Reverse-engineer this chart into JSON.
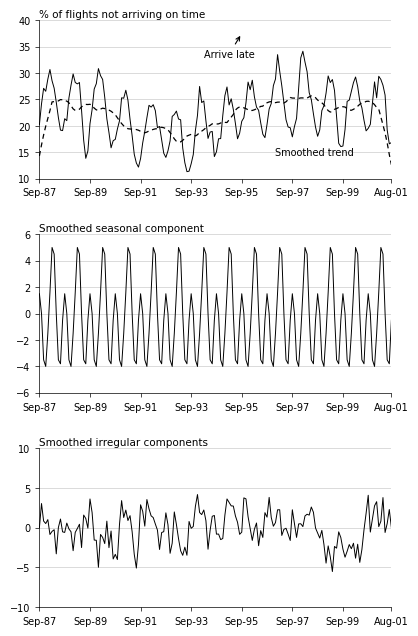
{
  "title1": "% of flights not arriving on time",
  "title2": "Smoothed seasonal component",
  "title3": "Smoothed irregular components",
  "xtick_labels": [
    "Sep-87",
    "Sep-89",
    "Sep-91",
    "Sep-93",
    "Sep-95",
    "Sep-97",
    "Sep-99",
    "Aug-01"
  ],
  "ylim1": [
    10,
    40
  ],
  "yticks1": [
    10,
    15,
    20,
    25,
    30,
    35,
    40
  ],
  "ylim2": [
    -6,
    6
  ],
  "yticks2": [
    -6,
    -4,
    -2,
    0,
    2,
    4,
    6
  ],
  "ylim3": [
    -10,
    10
  ],
  "yticks3": [
    -10,
    -5,
    0,
    5,
    10
  ],
  "line_color": "#000000",
  "trend_color": "#000000",
  "bg_color": "#ffffff",
  "grid_color": "#cccccc",
  "fontsize_title": 7.5,
  "fontsize_tick": 7,
  "label_arrive_late": "Arrive late",
  "label_smoothed_trend": "Smoothed trend",
  "n_months": 168
}
